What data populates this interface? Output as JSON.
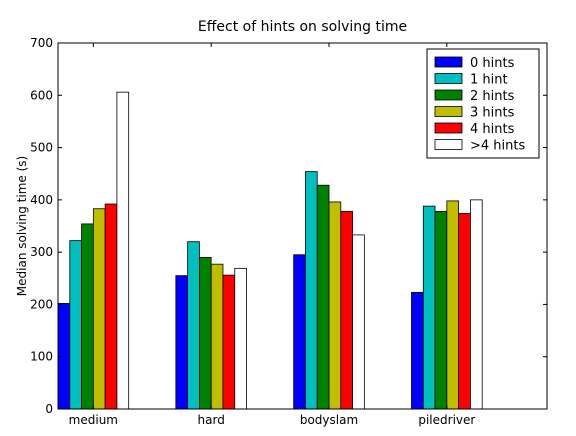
{
  "chart_data": {
    "type": "bar",
    "title": "Effect of hints on solving time",
    "xlabel": "",
    "ylabel": "Median solving time (s)",
    "ylim": [
      0,
      700
    ],
    "yticks": [
      0,
      100,
      200,
      300,
      400,
      500,
      600,
      700
    ],
    "categories": [
      "medium",
      "hard",
      "bodyslam",
      "piledriver"
    ],
    "series": [
      {
        "name": "0 hints",
        "color": "#0000ff",
        "values": [
          202,
          255,
          295,
          223
        ]
      },
      {
        "name": "1 hint",
        "color": "#00bfbf",
        "values": [
          322,
          320,
          454,
          388
        ]
      },
      {
        "name": "2 hints",
        "color": "#008000",
        "values": [
          354,
          290,
          428,
          378
        ]
      },
      {
        "name": "3 hints",
        "color": "#bfbf00",
        "values": [
          383,
          277,
          396,
          398
        ]
      },
      {
        "name": "4 hints",
        "color": "#ff0000",
        "values": [
          392,
          256,
          378,
          374
        ]
      },
      {
        "name": ">4 hints",
        "color": "#ffffff",
        "values": [
          606,
          269,
          333,
          400
        ]
      }
    ],
    "legend_position": "top-right",
    "grid": false
  }
}
